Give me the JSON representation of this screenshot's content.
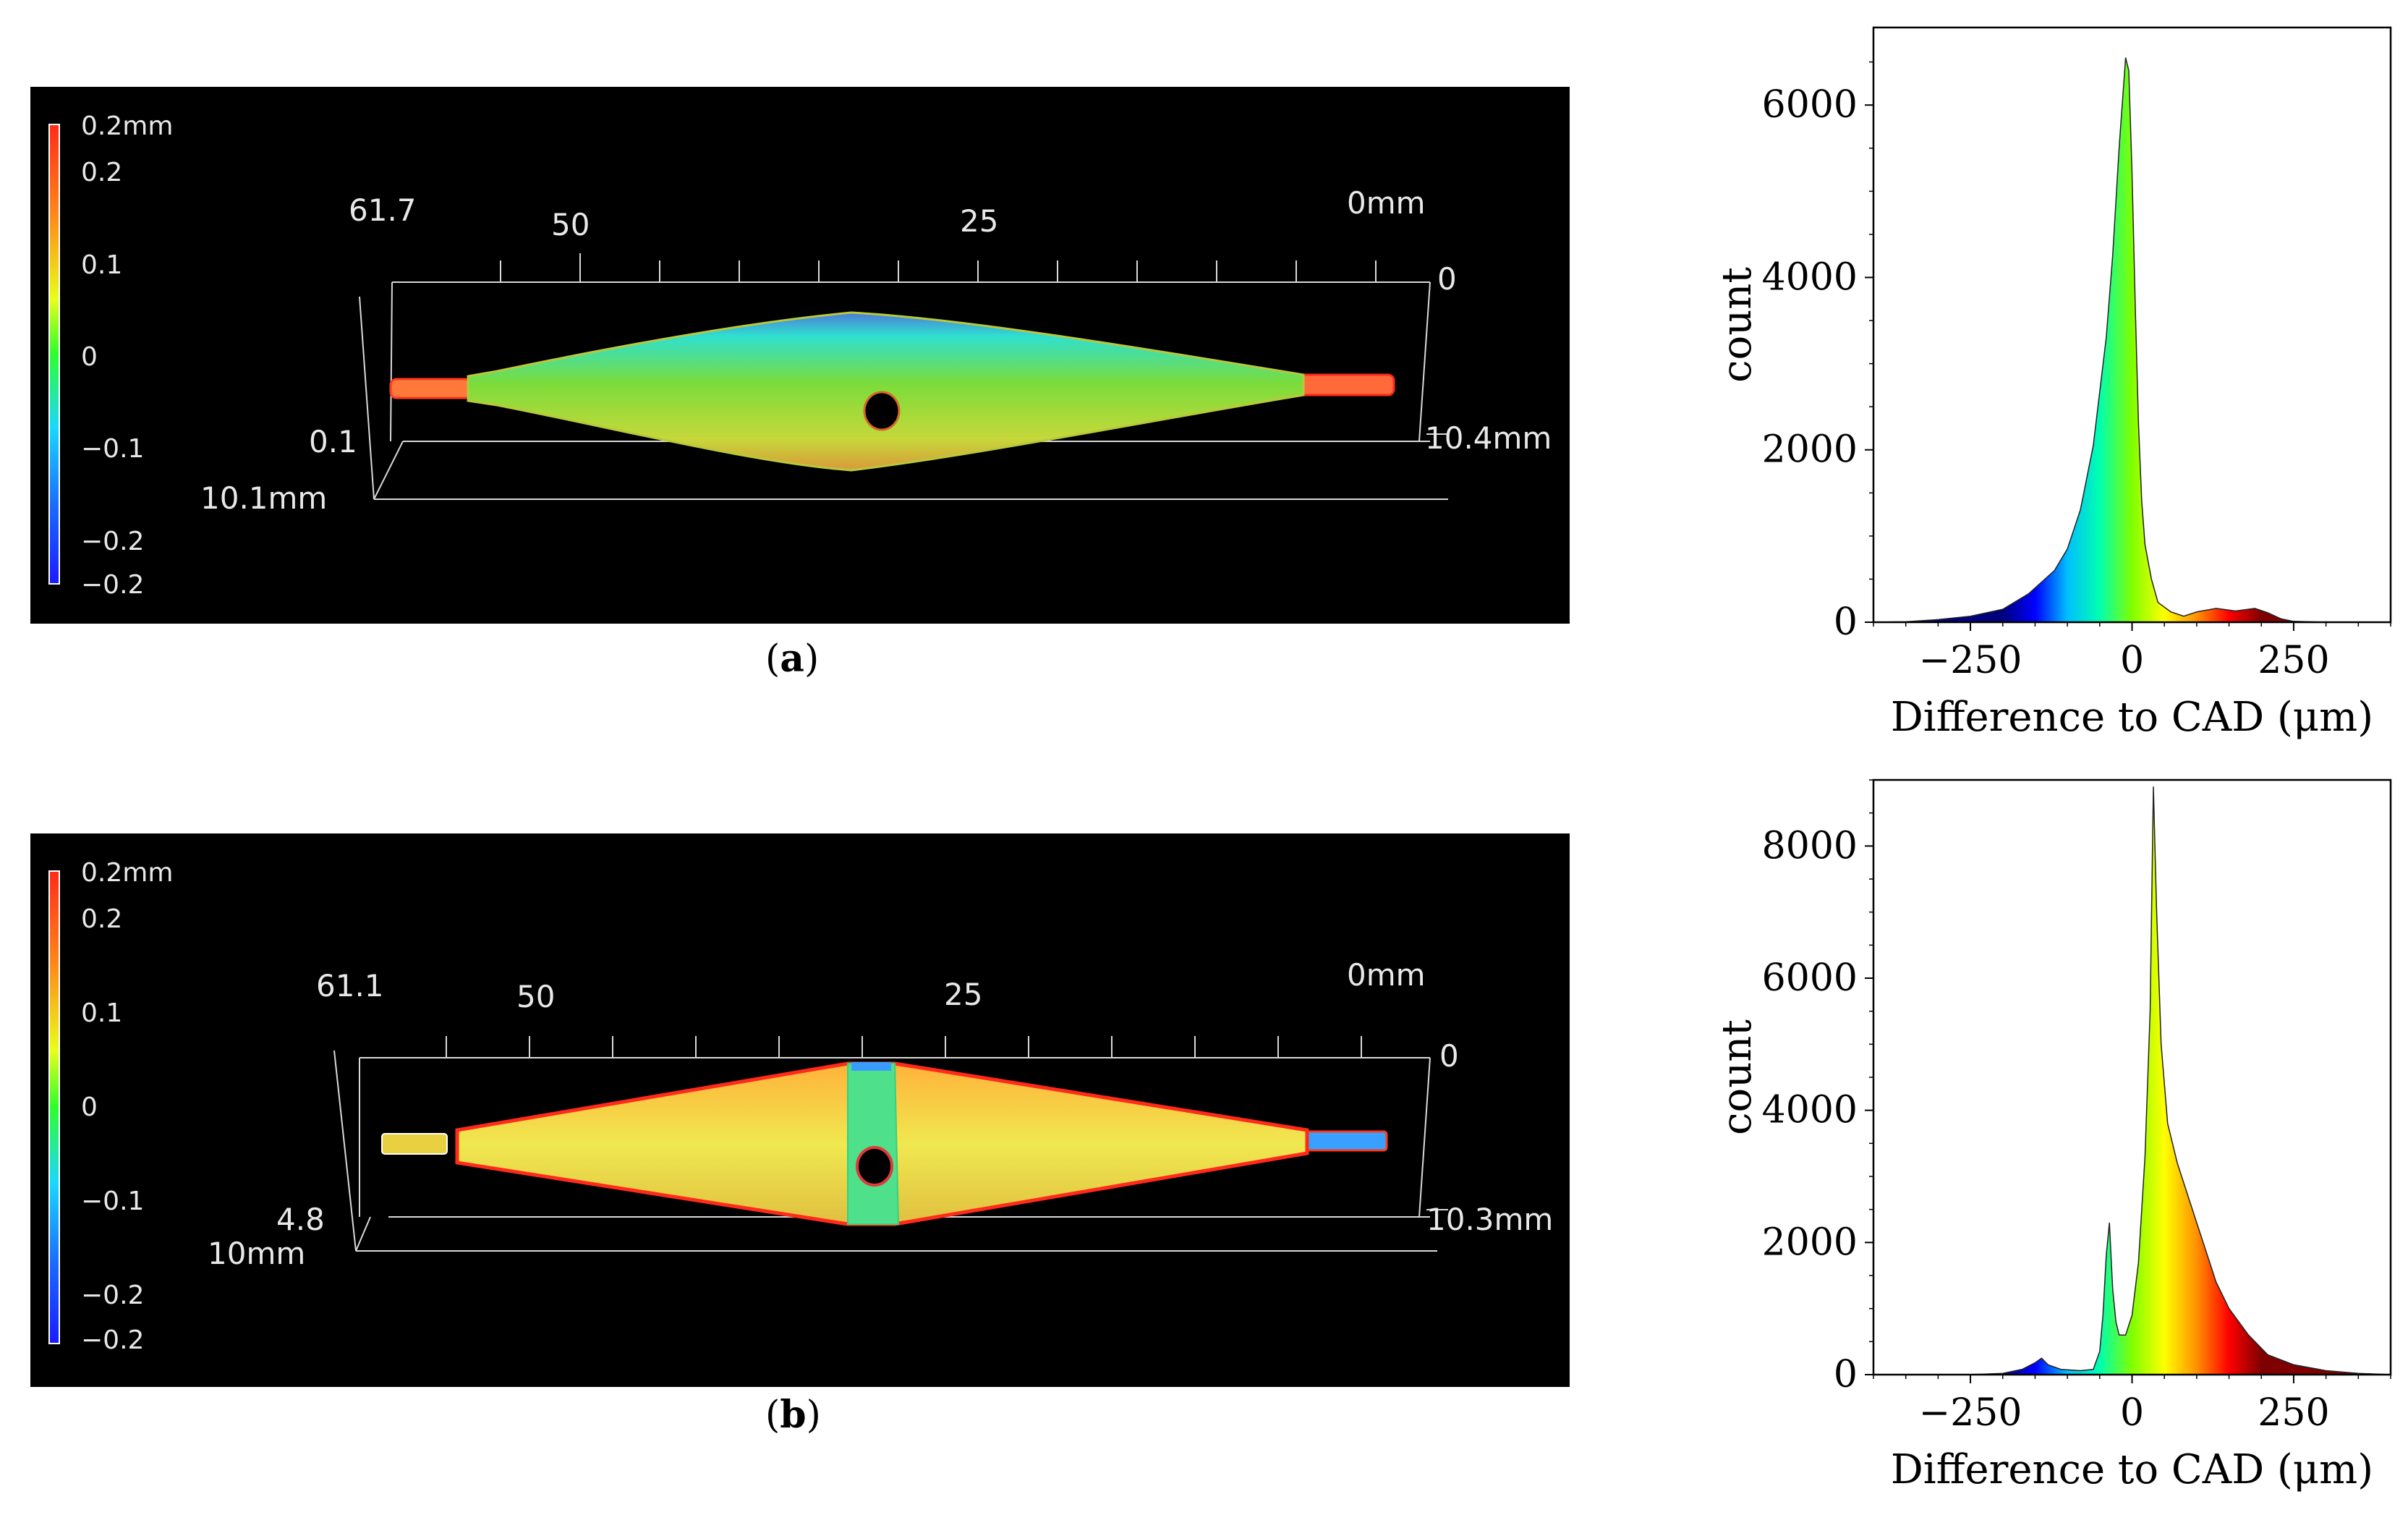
{
  "captions": {
    "a": "a",
    "b": "b"
  },
  "scans": [
    {
      "id": "a",
      "colorbar_labels": [
        "0.2mm",
        "0.2",
        "0.1",
        "0",
        "−0.1",
        "−0.2",
        "−0.2"
      ],
      "axis_top_labels": [
        "61.7",
        "50",
        "25",
        "0mm"
      ],
      "axis_right_labels": [
        "0",
        "10.4mm"
      ],
      "axis_left_labels": [
        "0.1",
        "10.1mm"
      ]
    },
    {
      "id": "b",
      "colorbar_labels": [
        "0.2mm",
        "0.2",
        "0.1",
        "0",
        "−0.1",
        "−0.2",
        "−0.2"
      ],
      "axis_top_labels": [
        "61.1",
        "50",
        "25",
        "0mm"
      ],
      "axis_right_labels": [
        "0",
        "10.3mm"
      ],
      "axis_left_labels": [
        "4.8",
        "10mm"
      ]
    }
  ],
  "chart_data": [
    {
      "type": "area",
      "xlabel": "Difference to CAD (μm)",
      "ylabel": "count",
      "xlim": [
        -400,
        400
      ],
      "ylim": [
        0,
        6900
      ],
      "x_ticks": [
        -250,
        0,
        250
      ],
      "x_tick_labels": [
        "−250",
        "0",
        "250"
      ],
      "y_ticks": [
        0,
        2000,
        4000,
        6000
      ],
      "y_tick_labels": [
        "0",
        "2000",
        "4000",
        "6000"
      ],
      "colormap": [
        "#00007f",
        "#0000ff",
        "#00bfff",
        "#00ffb0",
        "#7fff00",
        "#ffff00",
        "#ff9000",
        "#ff0000",
        "#7f0000"
      ],
      "color_range": [
        -200,
        200
      ],
      "x": [
        -400,
        -350,
        -300,
        -250,
        -200,
        -160,
        -120,
        -100,
        -80,
        -60,
        -40,
        -30,
        -20,
        -10,
        -5,
        0,
        5,
        10,
        15,
        20,
        30,
        40,
        60,
        80,
        100,
        130,
        160,
        190,
        210,
        230,
        250,
        300,
        350,
        400
      ],
      "y": [
        0,
        5,
        30,
        70,
        150,
        330,
        600,
        850,
        1300,
        2050,
        3300,
        4250,
        5500,
        6550,
        6400,
        5200,
        3650,
        2300,
        1400,
        900,
        500,
        230,
        120,
        70,
        120,
        160,
        130,
        160,
        110,
        40,
        10,
        0,
        0,
        0
      ]
    },
    {
      "type": "area",
      "xlabel": "Difference to CAD (μm)",
      "ylabel": "count",
      "xlim": [
        -400,
        400
      ],
      "ylim": [
        0,
        9000
      ],
      "x_ticks": [
        -250,
        0,
        250
      ],
      "x_tick_labels": [
        "−250",
        "0",
        "250"
      ],
      "y_ticks": [
        0,
        2000,
        4000,
        6000,
        8000
      ],
      "y_tick_labels": [
        "0",
        "2000",
        "4000",
        "6000",
        "8000"
      ],
      "colormap": [
        "#00007f",
        "#0000ff",
        "#00bfff",
        "#00ffb0",
        "#7fff00",
        "#ffff00",
        "#ff9000",
        "#ff0000",
        "#7f0000"
      ],
      "color_range": [
        -200,
        200
      ],
      "x": [
        -400,
        -300,
        -250,
        -200,
        -170,
        -150,
        -140,
        -130,
        -110,
        -80,
        -60,
        -50,
        -45,
        -40,
        -35,
        -30,
        -25,
        -20,
        -10,
        0,
        10,
        20,
        28,
        33,
        38,
        45,
        55,
        70,
        90,
        110,
        130,
        150,
        180,
        210,
        250,
        300,
        350,
        400
      ],
      "y": [
        0,
        0,
        0,
        20,
        80,
        180,
        250,
        150,
        80,
        60,
        80,
        350,
        900,
        1800,
        2300,
        1300,
        800,
        600,
        600,
        900,
        1700,
        3300,
        5500,
        8900,
        7000,
        5000,
        3800,
        3200,
        2600,
        2000,
        1400,
        1000,
        600,
        300,
        150,
        60,
        20,
        0
      ]
    }
  ]
}
